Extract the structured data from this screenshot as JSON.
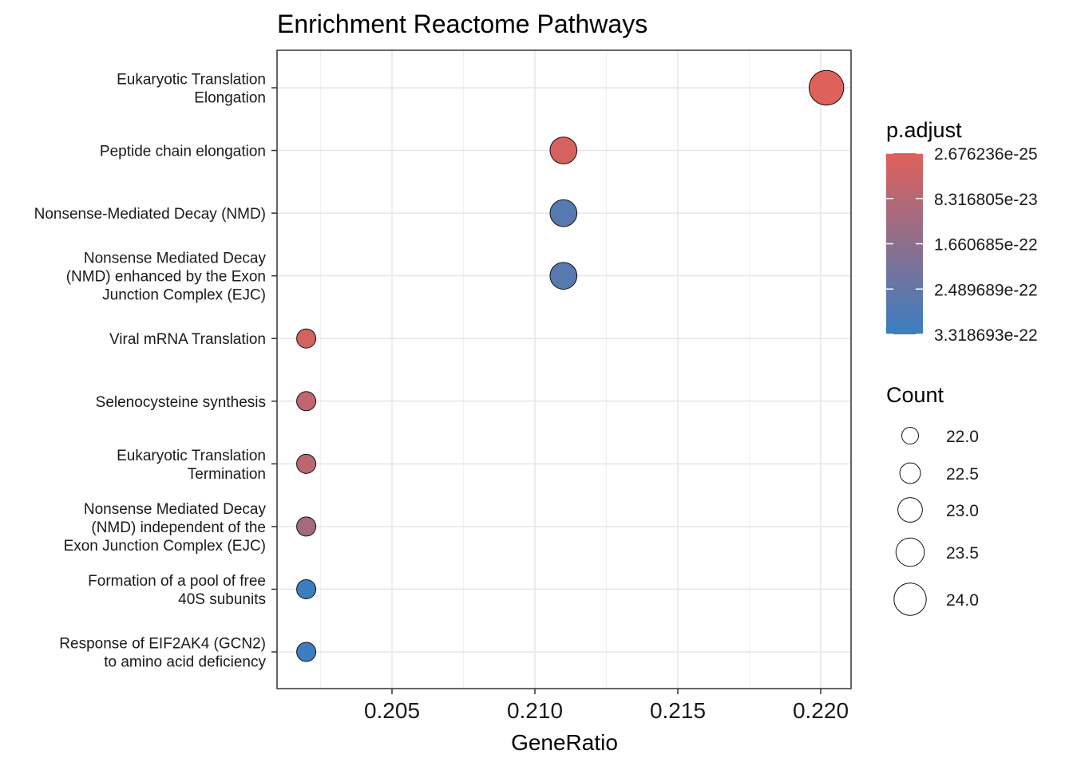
{
  "chart_data": {
    "type": "scatter",
    "title": "Enrichment Reactome Pathways",
    "xlabel": "GeneRatio",
    "ylabel": "",
    "xlim": [
      0.2011,
      0.2213
    ],
    "xticks": [
      "0.205",
      "0.210",
      "0.215",
      "0.220"
    ],
    "grid": true,
    "categories": [
      [
        "Eukaryotic Translation",
        "Elongation"
      ],
      [
        "Peptide chain elongation"
      ],
      [
        "Nonsense-Mediated Decay (NMD)"
      ],
      [
        "Nonsense Mediated Decay",
        "(NMD) enhanced by the Exon",
        "Junction Complex (EJC)"
      ],
      [
        "Viral mRNA Translation"
      ],
      [
        "Selenocysteine synthesis"
      ],
      [
        "Eukaryotic Translation",
        "Termination"
      ],
      [
        "Nonsense Mediated Decay",
        "(NMD) independent of the",
        "Exon Junction Complex (EJC)"
      ],
      [
        "Formation of a pool of free",
        "40S subunits"
      ],
      [
        "Response of EIF2AK4 (GCN2)",
        "to amino acid deficiency"
      ]
    ],
    "points": [
      {
        "x": 0.2202,
        "count": 24,
        "p_adjust": 2.676236e-25
      },
      {
        "x": 0.211,
        "count": 23,
        "p_adjust": 2e-23
      },
      {
        "x": 0.211,
        "count": 23,
        "p_adjust": 2.75e-22
      },
      {
        "x": 0.211,
        "count": 23,
        "p_adjust": 2.75e-22
      },
      {
        "x": 0.202,
        "count": 22,
        "p_adjust": 3e-23
      },
      {
        "x": 0.202,
        "count": 22,
        "p_adjust": 6.5e-23
      },
      {
        "x": 0.202,
        "count": 22,
        "p_adjust": 7.5e-23
      },
      {
        "x": 0.202,
        "count": 22,
        "p_adjust": 1.2e-22
      },
      {
        "x": 0.202,
        "count": 22,
        "p_adjust": 3.318693e-22
      },
      {
        "x": 0.202,
        "count": 22,
        "p_adjust": 3.318693e-22
      }
    ],
    "color_legend": {
      "title": "p.adjust",
      "labels": [
        "2.676236e-25",
        "8.316805e-23",
        "1.660685e-22",
        "2.489689e-22",
        "3.318693e-22"
      ],
      "min": 2.676236e-25,
      "max": 3.318693e-22,
      "low_color": "#E0605A",
      "high_color": "#3A7EC0"
    },
    "size_legend": {
      "title": "Count",
      "labels": [
        "22.0",
        "22.5",
        "23.0",
        "23.5",
        "24.0"
      ],
      "values": [
        22.0,
        22.5,
        23.0,
        23.5,
        24.0
      ]
    }
  }
}
